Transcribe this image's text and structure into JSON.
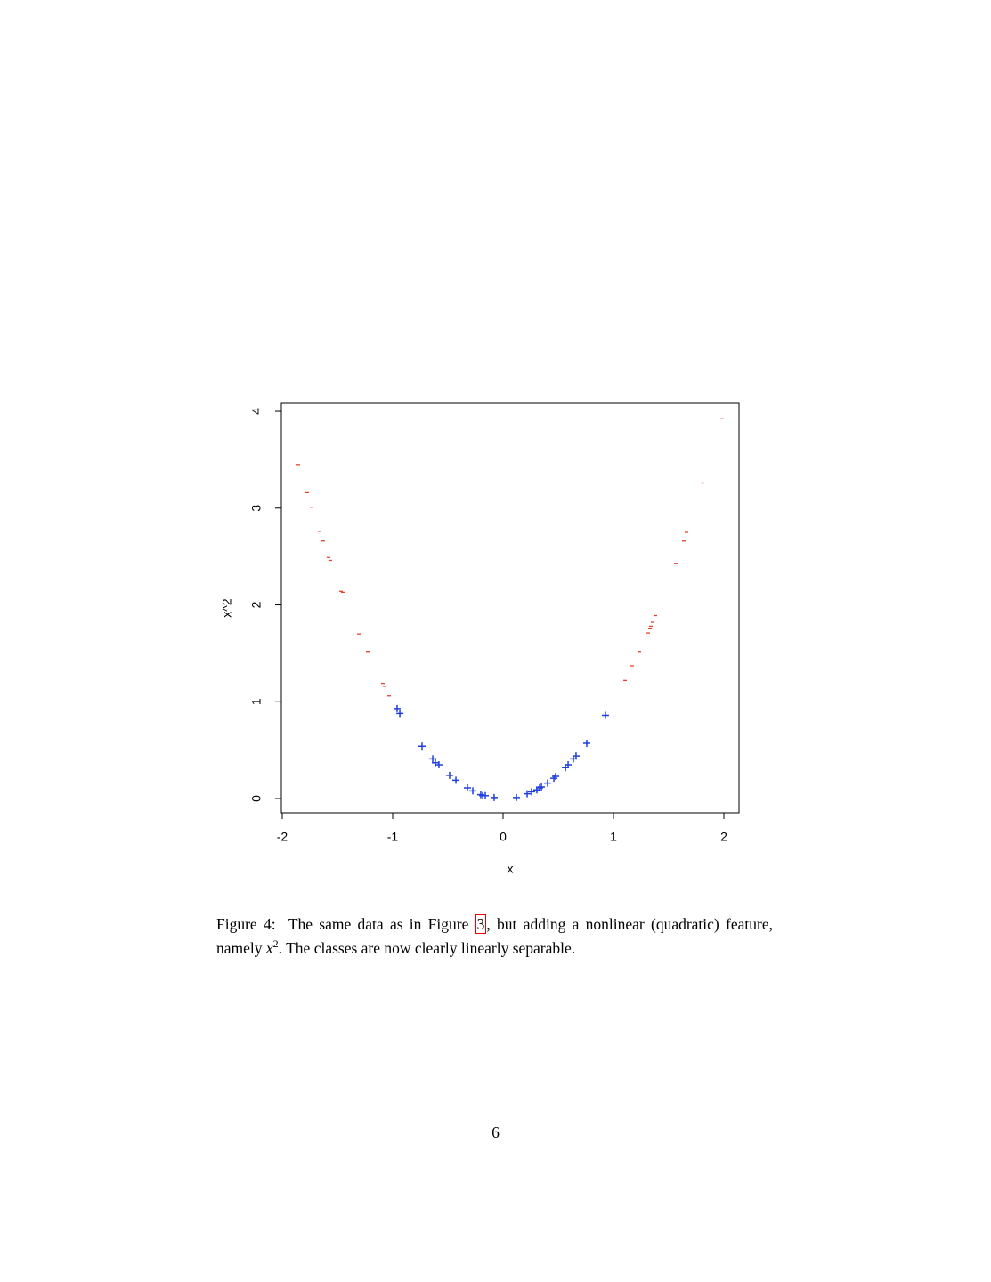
{
  "chart_data": {
    "type": "scatter",
    "x_label": "x",
    "y_label": "x^2",
    "xlim": [
      -2.008,
      2.137
    ],
    "ylim": [
      -0.147,
      4.083
    ],
    "xticks": [
      -2,
      -1,
      0,
      1,
      2
    ],
    "yticks": [
      0,
      1,
      2,
      3,
      4
    ],
    "series": [
      {
        "color": "#e8402a",
        "marker": "minus",
        "x": [
          -1.855,
          -1.774,
          -1.734,
          -1.661,
          -1.629,
          -1.581,
          -1.565,
          -1.468,
          -1.452,
          -1.306,
          -1.226,
          -1.089,
          -1.073,
          -1.032,
          1.105,
          1.169,
          1.234,
          1.315,
          1.331,
          1.339,
          1.355,
          1.379,
          1.565,
          1.637,
          1.661,
          1.806,
          1.984
        ],
        "values": [
          3.45,
          3.16,
          3.01,
          2.76,
          2.66,
          2.49,
          2.46,
          2.14,
          2.13,
          1.7,
          1.52,
          1.19,
          1.16,
          1.06,
          1.22,
          1.37,
          1.52,
          1.71,
          1.76,
          1.78,
          1.82,
          1.89,
          2.43,
          2.66,
          2.75,
          3.26,
          3.93
        ]
      },
      {
        "color": "#1f3fe0",
        "marker": "plus",
        "x": [
          -0.96,
          -0.935,
          -0.734,
          -0.637,
          -0.613,
          -0.581,
          -0.484,
          -0.427,
          -0.323,
          -0.274,
          -0.202,
          -0.185,
          -0.161,
          -0.081,
          0.121,
          0.218,
          0.258,
          0.306,
          0.331,
          0.347,
          0.403,
          0.46,
          0.476,
          0.565,
          0.589,
          0.637,
          0.661,
          0.758,
          0.927
        ],
        "values": [
          0.93,
          0.88,
          0.54,
          0.41,
          0.37,
          0.35,
          0.24,
          0.19,
          0.11,
          0.08,
          0.04,
          0.03,
          0.03,
          0.01,
          0.01,
          0.05,
          0.07,
          0.09,
          0.11,
          0.12,
          0.16,
          0.21,
          0.23,
          0.32,
          0.35,
          0.41,
          0.44,
          0.57,
          0.86
        ]
      }
    ]
  },
  "caption": {
    "label": "Figure 4:",
    "text_before_ref": "The same data as in Figure",
    "ref": "3",
    "text_after_ref": ", but adding a nonlinear (quadratic) feature, namely",
    "math_base": "x",
    "math_sup": "2",
    "text_end": ". The classes are now clearly linearly separable."
  },
  "page_number": "6"
}
